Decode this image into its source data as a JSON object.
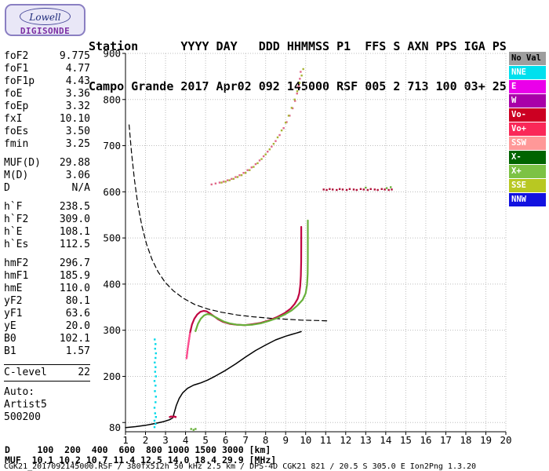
{
  "logo": {
    "line1": "Lowell",
    "line2": "DIGISONDE"
  },
  "header": {
    "line1": "Station      YYYY DAY   DDD HHMMSS P1  FFS S AXN PPS IGA PS",
    "line2": "Campo Grande 2017 Apr02 092 145000 RSF 005 2 713 100 03+ 25"
  },
  "left_panel": {
    "groups": [
      {
        "rows": [
          [
            "foF2",
            "9.775"
          ],
          [
            "foF1",
            "4.77"
          ],
          [
            "foF1p",
            "4.43"
          ],
          [
            "foE",
            "3.36"
          ],
          [
            "foEp",
            "3.32"
          ],
          [
            "fxI",
            "10.10"
          ],
          [
            "foEs",
            "3.50"
          ],
          [
            "fmin",
            "3.25"
          ]
        ]
      },
      {
        "rows": [
          [
            "MUF(D)",
            "29.88"
          ],
          [
            "M(D)",
            "3.06"
          ],
          [
            "D",
            "N/A"
          ]
        ]
      },
      {
        "rows": [
          [
            "h`F",
            "238.5"
          ],
          [
            "h`F2",
            "309.0"
          ],
          [
            "h`E",
            "108.1"
          ],
          [
            "h`Es",
            "112.5"
          ]
        ]
      },
      {
        "rows": [
          [
            "hmF2",
            "296.7"
          ],
          [
            "hmF1",
            "185.9"
          ],
          [
            "hmE",
            "110.0"
          ],
          [
            "yF2",
            "80.1"
          ],
          [
            "yF1",
            "63.6"
          ],
          [
            "yE",
            "20.0"
          ],
          [
            "B0",
            "102.1"
          ],
          [
            "B1",
            "1.57"
          ]
        ]
      },
      {
        "ruled": true,
        "rows": [
          [
            "C-level",
            "22"
          ]
        ]
      },
      {
        "rows": [
          [
            "Auto:",
            ""
          ],
          [
            "Artist5",
            ""
          ],
          [
            "500200",
            ""
          ]
        ]
      }
    ]
  },
  "legend": {
    "items": [
      {
        "label": "No Val",
        "color": "#9e9e9e",
        "text": "#000000"
      },
      {
        "label": "NNE",
        "color": "#00e0ee",
        "text": "#ffffff"
      },
      {
        "label": "E",
        "color": "#ea00ea",
        "text": "#ffffff"
      },
      {
        "label": "W",
        "color": "#a800a8",
        "text": "#ffffff"
      },
      {
        "label": "Vo-",
        "color": "#cc0022",
        "text": "#ffffff"
      },
      {
        "label": "Vo+",
        "color": "#fa2858",
        "text": "#ffffff"
      },
      {
        "label": "SSW",
        "color": "#ff9898",
        "text": "#ffffff"
      },
      {
        "label": "X-",
        "color": "#006400",
        "text": "#ffffff"
      },
      {
        "label": "X+",
        "color": "#7cc244",
        "text": "#ffffff"
      },
      {
        "label": "SSE",
        "color": "#b8c822",
        "text": "#ffffff"
      },
      {
        "label": "NNW",
        "color": "#1212e0",
        "text": "#ffffff"
      }
    ]
  },
  "footer": {
    "d_row": "D     100  200  400  600  800 1000 1500 3000 [km]",
    "muf_row": "MUF  10.1 10.2 10.7 11.4 12.5 14.0 18.4 29.9 [MHz]",
    "file_row": "CGK21_2017092145000.RSF / 380fx512h 50 kHz 2.5 km / DPS-4D CGK21 821 / 20.5 S 305.0 E Ion2Png 1.3.20"
  },
  "chart_data": {
    "type": "scatter",
    "title": "",
    "xlabel": "",
    "ylabel": "",
    "xlim": [
      1,
      20
    ],
    "ylim": [
      80,
      900
    ],
    "x_ticks": [
      1,
      2,
      3,
      4,
      5,
      6,
      7,
      8,
      9,
      10,
      11,
      12,
      13,
      14,
      15,
      16,
      17,
      18,
      19,
      20
    ],
    "y_ticks": [
      900,
      800,
      700,
      600,
      500,
      400,
      300,
      200,
      80
    ],
    "grid": {
      "x_step_mhz": 1,
      "y_step_km": 100
    },
    "legend_position": "right",
    "series": [
      {
        "name": "muf-transmission-curve",
        "style": "dashed",
        "color": "#000000",
        "width": 1.2,
        "points": [
          [
            1.18,
            745
          ],
          [
            1.3,
            685
          ],
          [
            1.45,
            625
          ],
          [
            1.62,
            572
          ],
          [
            1.82,
            526
          ],
          [
            2.05,
            487
          ],
          [
            2.32,
            454
          ],
          [
            2.62,
            427
          ],
          [
            2.98,
            404
          ],
          [
            3.4,
            385
          ],
          [
            3.9,
            369
          ],
          [
            4.45,
            356
          ],
          [
            5.1,
            346
          ],
          [
            5.8,
            339
          ],
          [
            6.6,
            333
          ],
          [
            7.4,
            329
          ],
          [
            8.2,
            326
          ],
          [
            9.0,
            324
          ],
          [
            9.8,
            322
          ],
          [
            10.6,
            321
          ],
          [
            11.2,
            320
          ]
        ]
      },
      {
        "name": "true-height-profile",
        "style": "line",
        "color": "#000000",
        "width": 1.5,
        "points": [
          [
            1.0,
            89
          ],
          [
            1.5,
            91
          ],
          [
            2.0,
            94
          ],
          [
            2.5,
            98
          ],
          [
            2.9,
            102
          ],
          [
            3.2,
            106
          ],
          [
            3.36,
            110
          ],
          [
            3.44,
            122
          ],
          [
            3.54,
            137
          ],
          [
            3.68,
            152
          ],
          [
            3.85,
            164
          ],
          [
            4.1,
            174
          ],
          [
            4.4,
            181
          ],
          [
            4.77,
            186
          ],
          [
            5.1,
            192
          ],
          [
            5.5,
            201
          ],
          [
            6.0,
            213
          ],
          [
            6.5,
            227
          ],
          [
            7.0,
            242
          ],
          [
            7.5,
            256
          ],
          [
            8.0,
            268
          ],
          [
            8.5,
            279
          ],
          [
            9.0,
            287
          ],
          [
            9.3,
            291
          ],
          [
            9.55,
            294
          ],
          [
            9.7,
            296
          ],
          [
            9.775,
            297
          ]
        ]
      },
      {
        "name": "o-mode-f-trace",
        "style": "line",
        "color": "#c00642",
        "width": 2.2,
        "points": [
          [
            4.05,
            239
          ],
          [
            4.1,
            257
          ],
          [
            4.16,
            276
          ],
          [
            4.23,
            295
          ],
          [
            4.32,
            312
          ],
          [
            4.44,
            325
          ],
          [
            4.58,
            334
          ],
          [
            4.74,
            340
          ],
          [
            4.9,
            342
          ],
          [
            5.05,
            341
          ],
          [
            5.2,
            337
          ],
          [
            5.4,
            331
          ],
          [
            5.62,
            324
          ],
          [
            5.88,
            318
          ],
          [
            6.2,
            314
          ],
          [
            6.55,
            312
          ],
          [
            6.95,
            311
          ],
          [
            7.35,
            313
          ],
          [
            7.75,
            316
          ],
          [
            8.15,
            321
          ],
          [
            8.55,
            328
          ],
          [
            8.95,
            337
          ],
          [
            9.25,
            347
          ],
          [
            9.45,
            357
          ],
          [
            9.6,
            368
          ],
          [
            9.68,
            380
          ],
          [
            9.73,
            396
          ],
          [
            9.76,
            418
          ],
          [
            9.775,
            448
          ],
          [
            9.78,
            486
          ],
          [
            9.78,
            524
          ]
        ]
      },
      {
        "name": "o-mode-leading-edge",
        "style": "line",
        "color": "#ff4f92",
        "width": 2.2,
        "points": [
          [
            4.05,
            239
          ],
          [
            4.1,
            257
          ],
          [
            4.16,
            276
          ],
          [
            4.22,
            293
          ]
        ]
      },
      {
        "name": "x-mode-f-trace",
        "style": "line",
        "color": "#68b03a",
        "width": 2.2,
        "points": [
          [
            4.5,
            298
          ],
          [
            4.62,
            314
          ],
          [
            4.76,
            325
          ],
          [
            4.92,
            332
          ],
          [
            5.08,
            335
          ],
          [
            5.24,
            334
          ],
          [
            5.42,
            330
          ],
          [
            5.64,
            325
          ],
          [
            5.9,
            319
          ],
          [
            6.2,
            315
          ],
          [
            6.55,
            312
          ],
          [
            6.95,
            311
          ],
          [
            7.35,
            312
          ],
          [
            7.75,
            315
          ],
          [
            8.15,
            320
          ],
          [
            8.55,
            326
          ],
          [
            8.95,
            334
          ],
          [
            9.3,
            343
          ],
          [
            9.6,
            354
          ],
          [
            9.85,
            366
          ],
          [
            10.0,
            380
          ],
          [
            10.07,
            398
          ],
          [
            10.1,
            422
          ],
          [
            10.11,
            455
          ],
          [
            10.11,
            498
          ],
          [
            10.11,
            538
          ]
        ]
      },
      {
        "name": "e-es-trace",
        "style": "dots",
        "color": "#c00642",
        "points": [
          [
            3.22,
            112
          ],
          [
            3.29,
            113
          ],
          [
            3.36,
            112
          ],
          [
            3.43,
            113
          ],
          [
            3.5,
            112
          ]
        ]
      },
      {
        "name": "o-mode-second-hop",
        "style": "dots",
        "color": "#e06888",
        "points": [
          [
            5.3,
            616
          ],
          [
            5.5,
            618
          ],
          [
            5.7,
            620
          ],
          [
            5.9,
            622
          ],
          [
            6.1,
            625
          ],
          [
            6.3,
            628
          ],
          [
            6.5,
            632
          ],
          [
            6.7,
            636
          ],
          [
            6.9,
            641
          ],
          [
            7.1,
            647
          ],
          [
            7.3,
            653
          ],
          [
            7.5,
            660
          ],
          [
            7.7,
            668
          ],
          [
            7.9,
            677
          ],
          [
            8.1,
            687
          ],
          [
            8.3,
            698
          ],
          [
            8.5,
            710
          ],
          [
            8.7,
            723
          ],
          [
            8.9,
            738
          ],
          [
            9.05,
            751
          ],
          [
            9.2,
            765
          ],
          [
            9.35,
            781
          ],
          [
            9.47,
            797
          ],
          [
            9.57,
            813
          ],
          [
            9.65,
            829
          ],
          [
            9.71,
            845
          ],
          [
            9.75,
            860
          ]
        ]
      },
      {
        "name": "x-mode-second-hop",
        "style": "dots",
        "color": "#a8b435",
        "points": [
          [
            5.8,
            620
          ],
          [
            6.0,
            622
          ],
          [
            6.2,
            625
          ],
          [
            6.4,
            628
          ],
          [
            6.6,
            632
          ],
          [
            6.8,
            636
          ],
          [
            7.0,
            641
          ],
          [
            7.2,
            647
          ],
          [
            7.4,
            654
          ],
          [
            7.6,
            662
          ],
          [
            7.8,
            671
          ],
          [
            8.0,
            681
          ],
          [
            8.2,
            692
          ],
          [
            8.4,
            704
          ],
          [
            8.6,
            718
          ],
          [
            8.8,
            733
          ],
          [
            9.0,
            750
          ],
          [
            9.15,
            765
          ],
          [
            9.3,
            782
          ],
          [
            9.45,
            800
          ],
          [
            9.58,
            818
          ],
          [
            9.7,
            836
          ],
          [
            9.8,
            852
          ],
          [
            9.88,
            866
          ]
        ]
      },
      {
        "name": "spread-f-600km",
        "style": "dots",
        "color": "#b01038",
        "points": [
          [
            10.9,
            605
          ],
          [
            11.05,
            604
          ],
          [
            11.2,
            606
          ],
          [
            11.35,
            605
          ],
          [
            11.55,
            604
          ],
          [
            11.7,
            606
          ],
          [
            11.85,
            605
          ],
          [
            12.05,
            604
          ],
          [
            12.2,
            606
          ],
          [
            12.4,
            605
          ],
          [
            12.55,
            604
          ],
          [
            12.75,
            606
          ],
          [
            12.9,
            605
          ],
          [
            13.1,
            604
          ],
          [
            13.25,
            606
          ],
          [
            13.45,
            605
          ],
          [
            13.6,
            604
          ],
          [
            13.8,
            606
          ],
          [
            13.95,
            605
          ],
          [
            14.15,
            604
          ],
          [
            14.3,
            605
          ]
        ]
      },
      {
        "name": "spread-f-600km-x",
        "style": "dots",
        "color": "#68b03a",
        "points": [
          [
            13.0,
            609
          ],
          [
            14.05,
            608
          ],
          [
            14.25,
            610
          ]
        ]
      },
      {
        "name": "nne-interference",
        "style": "dots",
        "color": "#00d8e8",
        "points": [
          [
            2.45,
            90
          ],
          [
            2.5,
            97
          ],
          [
            2.45,
            104
          ],
          [
            2.52,
            112
          ],
          [
            2.48,
            120
          ],
          [
            2.45,
            132
          ],
          [
            2.5,
            144
          ],
          [
            2.52,
            156
          ],
          [
            2.47,
            168
          ],
          [
            2.5,
            180
          ],
          [
            2.45,
            190
          ],
          [
            2.52,
            200
          ],
          [
            2.48,
            210
          ],
          [
            2.5,
            220
          ],
          [
            2.46,
            230
          ],
          [
            2.5,
            240
          ],
          [
            2.52,
            250
          ],
          [
            2.48,
            260
          ],
          [
            2.5,
            270
          ],
          [
            2.46,
            280
          ]
        ]
      },
      {
        "name": "bottom-green-specks",
        "style": "dots",
        "color": "#68b03a",
        "points": [
          [
            4.28,
            86
          ],
          [
            4.4,
            84
          ],
          [
            4.5,
            86
          ]
        ]
      }
    ]
  }
}
